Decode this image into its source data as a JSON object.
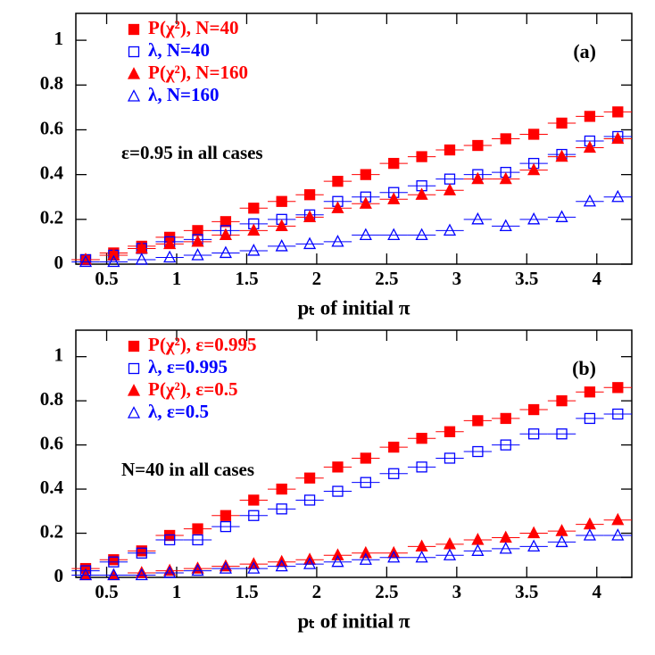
{
  "chart_data": [
    {
      "type": "scatter",
      "annotation": "(a)",
      "note": "ε=0.95 in all cases",
      "x_label": "pₜ of initial π",
      "x": [
        0.35,
        0.55,
        0.75,
        0.95,
        1.15,
        1.35,
        1.55,
        1.75,
        1.95,
        2.15,
        2.35,
        2.55,
        2.75,
        2.95,
        3.15,
        3.35,
        3.55,
        3.75,
        3.95,
        4.15
      ],
      "xlim": [
        0.28,
        4.25
      ],
      "ylim": [
        0,
        1.12
      ],
      "xticks": [
        0.5,
        1,
        1.5,
        2,
        2.5,
        3,
        3.5,
        4
      ],
      "yticks": [
        0,
        0.2,
        0.4,
        0.6,
        0.8,
        1
      ],
      "series": [
        {
          "name": "P(χ²), N=40",
          "color": "#ff0000",
          "marker": "square",
          "filled": true,
          "values": [
            0.02,
            0.05,
            0.08,
            0.12,
            0.15,
            0.19,
            0.25,
            0.28,
            0.31,
            0.37,
            0.4,
            0.45,
            0.48,
            0.51,
            0.53,
            0.56,
            0.58,
            0.63,
            0.66,
            0.68
          ]
        },
        {
          "name": "λ, N=40",
          "color": "#0000ff",
          "marker": "square",
          "filled": false,
          "values": [
            0.02,
            0.04,
            0.07,
            0.1,
            0.11,
            0.15,
            0.18,
            0.2,
            0.22,
            0.28,
            0.3,
            0.32,
            0.35,
            0.38,
            0.4,
            0.41,
            0.45,
            0.49,
            0.55,
            0.57
          ]
        },
        {
          "name": "P(χ²), N=160",
          "color": "#ff0000",
          "marker": "triangle",
          "filled": true,
          "values": [
            0.02,
            0.04,
            0.07,
            0.09,
            0.1,
            0.13,
            0.15,
            0.17,
            0.21,
            0.25,
            0.27,
            0.29,
            0.31,
            0.33,
            0.38,
            0.38,
            0.42,
            0.48,
            0.52,
            0.56
          ]
        },
        {
          "name": "λ, N=160",
          "color": "#0000ff",
          "marker": "triangle",
          "filled": false,
          "values": [
            0.01,
            0.01,
            0.02,
            0.03,
            0.04,
            0.05,
            0.06,
            0.08,
            0.09,
            0.1,
            0.13,
            0.13,
            0.13,
            0.15,
            0.2,
            0.17,
            0.2,
            0.21,
            0.28,
            0.3
          ]
        }
      ]
    },
    {
      "type": "scatter",
      "annotation": "(b)",
      "note": "N=40 in all cases",
      "x_label": "pₜ of initial π",
      "x": [
        0.35,
        0.55,
        0.75,
        0.95,
        1.15,
        1.35,
        1.55,
        1.75,
        1.95,
        2.15,
        2.35,
        2.55,
        2.75,
        2.95,
        3.15,
        3.35,
        3.55,
        3.75,
        3.95,
        4.15
      ],
      "xlim": [
        0.28,
        4.25
      ],
      "ylim": [
        0,
        1.12
      ],
      "xticks": [
        0.5,
        1,
        1.5,
        2,
        2.5,
        3,
        3.5,
        4
      ],
      "yticks": [
        0,
        0.2,
        0.4,
        0.6,
        0.8,
        1
      ],
      "series": [
        {
          "name": "P(χ²), ε=0.995",
          "color": "#ff0000",
          "marker": "square",
          "filled": true,
          "values": [
            0.04,
            0.08,
            0.12,
            0.19,
            0.22,
            0.28,
            0.35,
            0.4,
            0.45,
            0.5,
            0.54,
            0.59,
            0.63,
            0.66,
            0.71,
            0.72,
            0.76,
            0.8,
            0.84,
            0.86
          ]
        },
        {
          "name": "λ, ε=0.995",
          "color": "#0000ff",
          "marker": "square",
          "filled": false,
          "values": [
            0.03,
            0.07,
            0.11,
            0.17,
            0.17,
            0.23,
            0.28,
            0.31,
            0.35,
            0.39,
            0.43,
            0.47,
            0.5,
            0.54,
            0.57,
            0.6,
            0.65,
            0.65,
            0.72,
            0.74
          ]
        },
        {
          "name": "P(χ²), ε=0.5",
          "color": "#ff0000",
          "marker": "triangle",
          "filled": true,
          "values": [
            0.01,
            0.01,
            0.02,
            0.03,
            0.04,
            0.05,
            0.06,
            0.07,
            0.08,
            0.1,
            0.11,
            0.11,
            0.14,
            0.15,
            0.17,
            0.18,
            0.2,
            0.21,
            0.24,
            0.26
          ]
        },
        {
          "name": "λ, ε=0.5",
          "color": "#0000ff",
          "marker": "triangle",
          "filled": false,
          "values": [
            0.01,
            0.01,
            0.01,
            0.02,
            0.03,
            0.04,
            0.04,
            0.05,
            0.06,
            0.07,
            0.08,
            0.09,
            0.09,
            0.1,
            0.12,
            0.13,
            0.14,
            0.16,
            0.19,
            0.19
          ]
        }
      ]
    }
  ]
}
